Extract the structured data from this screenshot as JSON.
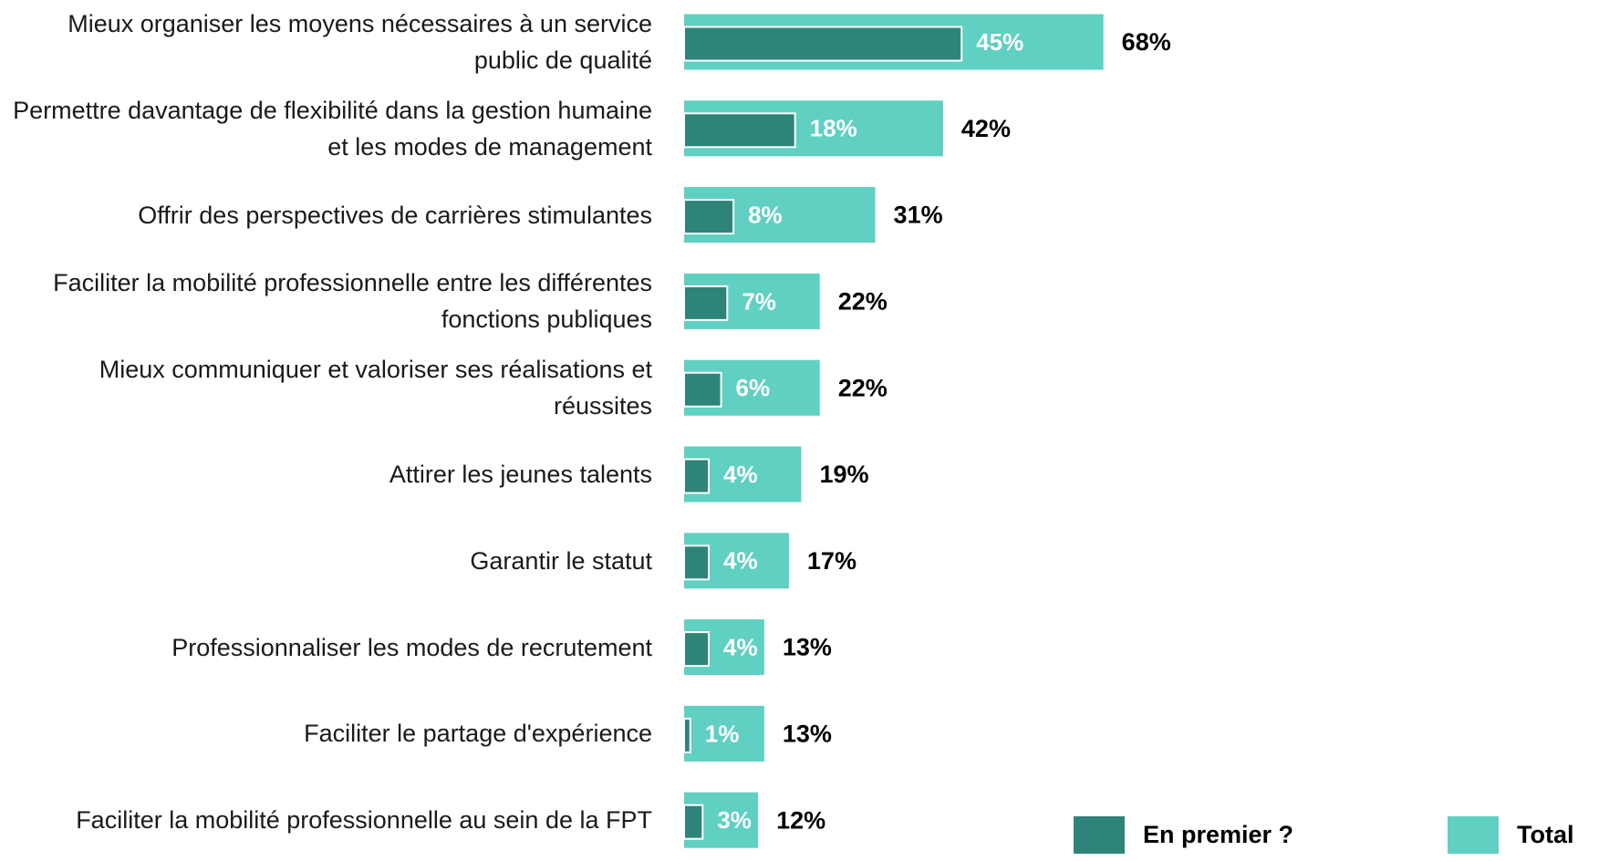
{
  "chart_data": {
    "type": "bar",
    "orientation": "horizontal",
    "categories": [
      "Mieux organiser les moyens nécessaires à un service public de qualité",
      "Permettre davantage de flexibilité dans la gestion humaine et les modes de management",
      "Offrir des perspectives de carrières stimulantes",
      "Faciliter la mobilité professionnelle entre les différentes fonctions publiques",
      "Mieux communiquer et valoriser ses réalisations et réussites",
      "Attirer les jeunes talents",
      "Garantir le statut",
      "Professionnaliser les modes de recrutement",
      "Faciliter le partage d'expérience",
      "Faciliter la mobilité professionnelle au sein de la FPT"
    ],
    "series": [
      {
        "name": "En premier ?",
        "color": "#2e8479",
        "values": [
          45,
          18,
          8,
          7,
          6,
          4,
          4,
          4,
          1,
          3
        ],
        "value_labels": [
          "45%",
          "18%",
          "8%",
          "7%",
          "6%",
          "4%",
          "4%",
          "4%",
          "1%",
          "3%"
        ]
      },
      {
        "name": "Total",
        "color": "#5fd0c1",
        "values": [
          68,
          42,
          31,
          22,
          22,
          19,
          17,
          13,
          13,
          12
        ],
        "value_labels": [
          "68%",
          "42%",
          "31%",
          "22%",
          "22%",
          "19%",
          "17%",
          "13%",
          "13%",
          "12%"
        ]
      }
    ],
    "overlap": true
  }
}
